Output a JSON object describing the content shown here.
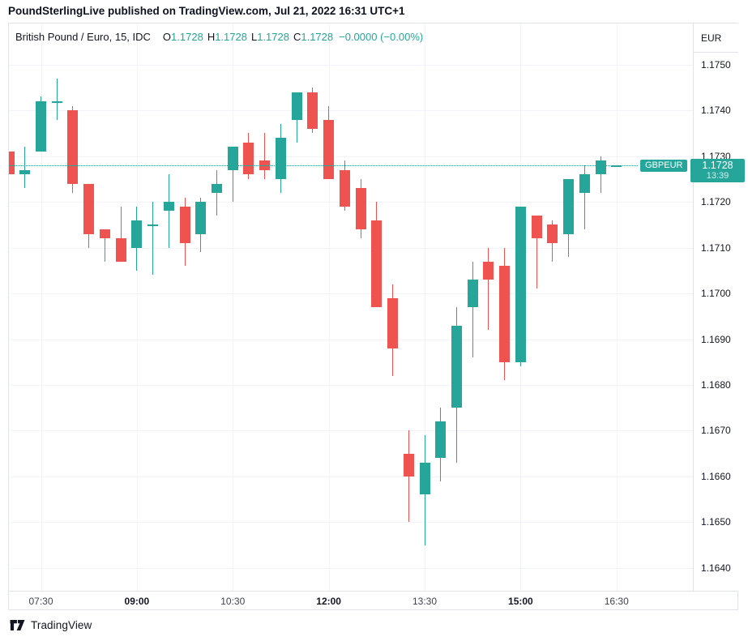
{
  "header": {
    "title": "PoundSterlingLive published on TradingView.com, Jul 21, 2022 16:31 UTC+1"
  },
  "legend": {
    "symbol": "British Pound / Euro, 15, IDC",
    "open_label": "O",
    "open": "1.1728",
    "high_label": "H",
    "high": "1.1728",
    "low_label": "L",
    "low": "1.1728",
    "close_label": "C",
    "close": "1.1728",
    "change": "−0.0000 (−0.00%)"
  },
  "price_axis": {
    "currency": "EUR",
    "ticks": [
      "1.1750",
      "1.1740",
      "1.1730",
      "1.1720",
      "1.1710",
      "1.1700",
      "1.1690",
      "1.1680",
      "1.1670",
      "1.1660",
      "1.1650",
      "1.1640"
    ],
    "badge": {
      "price": "1.1728",
      "countdown": "13:39"
    }
  },
  "time_axis": {
    "ticks": [
      {
        "label": "07:30",
        "index": 2,
        "bold": false
      },
      {
        "label": "09:00",
        "index": 8,
        "bold": true
      },
      {
        "label": "10:30",
        "index": 14,
        "bold": false
      },
      {
        "label": "12:00",
        "index": 20,
        "bold": true
      },
      {
        "label": "13:30",
        "index": 26,
        "bold": false
      },
      {
        "label": "15:00",
        "index": 32,
        "bold": true
      },
      {
        "label": "16:30",
        "index": 38,
        "bold": false
      }
    ]
  },
  "price_line": {
    "symbol_label": "GBPEUR",
    "price": 1.1728
  },
  "footer": {
    "brand": "TradingView"
  },
  "colors": {
    "up": "#26a69a",
    "down": "#ef5350",
    "grid": "#f0f3fa",
    "border": "#e0e3eb",
    "text": "#131722"
  },
  "chart_data": {
    "type": "candlestick",
    "title": "British Pound / Euro, 15, IDC",
    "symbol": "GBPEUR",
    "interval_minutes": 15,
    "ylabel": "EUR",
    "ylim": [
      1.1635,
      1.1759
    ],
    "grid": true,
    "candles": [
      {
        "t": "07:00",
        "o": 1.1731,
        "h": 1.1731,
        "l": 1.1726,
        "c": 1.1726
      },
      {
        "t": "07:15",
        "o": 1.1726,
        "h": 1.1732,
        "l": 1.1723,
        "c": 1.1727
      },
      {
        "t": "07:30",
        "o": 1.1731,
        "h": 1.1743,
        "l": 1.1731,
        "c": 1.1742
      },
      {
        "t": "07:45",
        "o": 1.1742,
        "h": 1.1747,
        "l": 1.1738,
        "c": 1.1742
      },
      {
        "t": "08:00",
        "o": 1.174,
        "h": 1.1741,
        "l": 1.1722,
        "c": 1.1724
      },
      {
        "t": "08:15",
        "o": 1.1724,
        "h": 1.1724,
        "l": 1.171,
        "c": 1.1713
      },
      {
        "t": "08:30",
        "o": 1.1714,
        "h": 1.1714,
        "l": 1.1707,
        "c": 1.1712
      },
      {
        "t": "08:45",
        "o": 1.1712,
        "h": 1.1719,
        "l": 1.1707,
        "c": 1.1707
      },
      {
        "t": "09:00",
        "o": 1.171,
        "h": 1.1719,
        "l": 1.1705,
        "c": 1.1716
      },
      {
        "t": "09:15",
        "o": 1.1715,
        "h": 1.172,
        "l": 1.1704,
        "c": 1.1715
      },
      {
        "t": "09:30",
        "o": 1.1718,
        "h": 1.1726,
        "l": 1.171,
        "c": 1.172
      },
      {
        "t": "09:45",
        "o": 1.1719,
        "h": 1.1721,
        "l": 1.1706,
        "c": 1.1711
      },
      {
        "t": "10:00",
        "o": 1.1713,
        "h": 1.1721,
        "l": 1.1709,
        "c": 1.172
      },
      {
        "t": "10:15",
        "o": 1.1722,
        "h": 1.1727,
        "l": 1.1717,
        "c": 1.1724
      },
      {
        "t": "10:30",
        "o": 1.1727,
        "h": 1.1732,
        "l": 1.172,
        "c": 1.1732
      },
      {
        "t": "10:45",
        "o": 1.1733,
        "h": 1.1735,
        "l": 1.1725,
        "c": 1.1726
      },
      {
        "t": "11:00",
        "o": 1.1729,
        "h": 1.1735,
        "l": 1.1725,
        "c": 1.1727
      },
      {
        "t": "11:15",
        "o": 1.1725,
        "h": 1.1737,
        "l": 1.1722,
        "c": 1.1734
      },
      {
        "t": "11:30",
        "o": 1.1738,
        "h": 1.1744,
        "l": 1.1733,
        "c": 1.1744
      },
      {
        "t": "11:45",
        "o": 1.1744,
        "h": 1.1745,
        "l": 1.1735,
        "c": 1.1736
      },
      {
        "t": "12:00",
        "o": 1.1738,
        "h": 1.1741,
        "l": 1.1725,
        "c": 1.1725
      },
      {
        "t": "12:15",
        "o": 1.1727,
        "h": 1.1729,
        "l": 1.1718,
        "c": 1.1719
      },
      {
        "t": "12:30",
        "o": 1.1723,
        "h": 1.1725,
        "l": 1.1712,
        "c": 1.1714
      },
      {
        "t": "12:45",
        "o": 1.1716,
        "h": 1.172,
        "l": 1.1697,
        "c": 1.1697
      },
      {
        "t": "13:00",
        "o": 1.1699,
        "h": 1.1702,
        "l": 1.1682,
        "c": 1.1688
      },
      {
        "t": "13:15",
        "o": 1.1665,
        "h": 1.167,
        "l": 1.165,
        "c": 1.166
      },
      {
        "t": "13:30",
        "o": 1.1656,
        "h": 1.1669,
        "l": 1.1645,
        "c": 1.1663
      },
      {
        "t": "13:45",
        "o": 1.1664,
        "h": 1.1675,
        "l": 1.1659,
        "c": 1.1672
      },
      {
        "t": "14:00",
        "o": 1.1675,
        "h": 1.1697,
        "l": 1.1663,
        "c": 1.1693
      },
      {
        "t": "14:15",
        "o": 1.1697,
        "h": 1.1707,
        "l": 1.1686,
        "c": 1.1703
      },
      {
        "t": "14:30",
        "o": 1.1707,
        "h": 1.171,
        "l": 1.1692,
        "c": 1.1703
      },
      {
        "t": "14:45",
        "o": 1.1706,
        "h": 1.171,
        "l": 1.1681,
        "c": 1.1685
      },
      {
        "t": "15:00",
        "o": 1.1685,
        "h": 1.1719,
        "l": 1.1684,
        "c": 1.1719
      },
      {
        "t": "15:15",
        "o": 1.1717,
        "h": 1.1717,
        "l": 1.1701,
        "c": 1.1712
      },
      {
        "t": "15:30",
        "o": 1.1715,
        "h": 1.1716,
        "l": 1.1707,
        "c": 1.1711
      },
      {
        "t": "15:45",
        "o": 1.1713,
        "h": 1.1725,
        "l": 1.1708,
        "c": 1.1725
      },
      {
        "t": "16:00",
        "o": 1.1722,
        "h": 1.1728,
        "l": 1.1714,
        "c": 1.1726
      },
      {
        "t": "16:15",
        "o": 1.1726,
        "h": 1.173,
        "l": 1.1722,
        "c": 1.1729
      },
      {
        "t": "16:30",
        "o": 1.1728,
        "h": 1.1728,
        "l": 1.1728,
        "c": 1.1728
      }
    ]
  }
}
